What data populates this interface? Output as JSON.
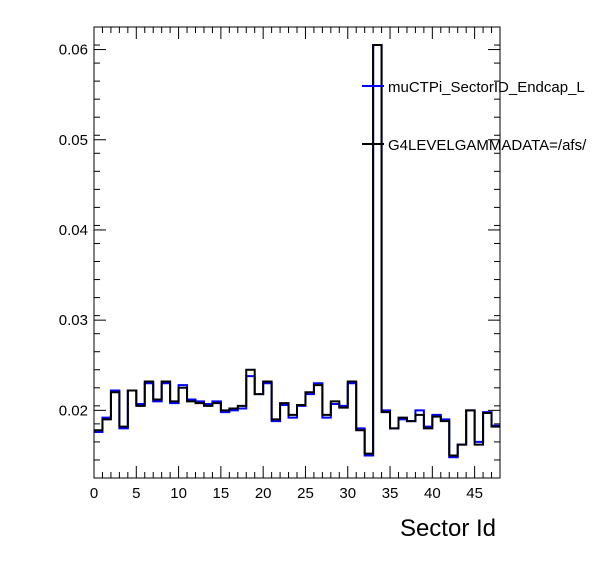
{
  "chart_data": {
    "type": "line",
    "xlabel": "Sector Id",
    "ylabel": "",
    "xlim": [
      0,
      48
    ],
    "ylim": [
      0.0125,
      0.0625
    ],
    "x_ticks": [
      0,
      5,
      10,
      15,
      20,
      25,
      30,
      35,
      40,
      45
    ],
    "y_ticks": [
      0.02,
      0.03,
      0.04,
      0.05,
      0.06
    ],
    "y_tick_labels": [
      "0.02",
      "0.03",
      "0.04",
      "0.05",
      "0.06"
    ],
    "grid": false,
    "legend": "top-right",
    "bin_edges": [
      0,
      1,
      2,
      3,
      4,
      5,
      6,
      7,
      8,
      9,
      10,
      11,
      12,
      13,
      14,
      15,
      16,
      17,
      18,
      19,
      20,
      21,
      22,
      23,
      24,
      25,
      26,
      27,
      28,
      29,
      30,
      31,
      32,
      33,
      34,
      35,
      36,
      37,
      38,
      39,
      40,
      41,
      42,
      43,
      44,
      45,
      46,
      47,
      48
    ],
    "series": [
      {
        "name": "muCTPi_SectorID_Endcap_L",
        "color": "#0000ff",
        "values": [
          0.0176,
          0.0192,
          0.0222,
          0.018,
          0.0222,
          0.0207,
          0.023,
          0.021,
          0.023,
          0.0208,
          0.0228,
          0.0212,
          0.021,
          0.0207,
          0.021,
          0.0198,
          0.02,
          0.0202,
          0.0238,
          0.0218,
          0.023,
          0.0188,
          0.0206,
          0.0192,
          0.0205,
          0.0218,
          0.023,
          0.0192,
          0.0207,
          0.0205,
          0.023,
          0.018,
          0.015,
          0.0605,
          0.02,
          0.018,
          0.019,
          0.0188,
          0.02,
          0.0182,
          0.0195,
          0.019,
          0.0148,
          0.0162,
          0.02,
          0.0165,
          0.0198,
          0.0183
        ]
      },
      {
        "name": "G4LEVELGAMMADATA=/afs/",
        "color": "#000000",
        "values": [
          0.0178,
          0.019,
          0.022,
          0.0182,
          0.0222,
          0.0205,
          0.0232,
          0.0212,
          0.0232,
          0.021,
          0.0225,
          0.021,
          0.0208,
          0.0205,
          0.0208,
          0.02,
          0.0202,
          0.0205,
          0.0245,
          0.0218,
          0.0232,
          0.019,
          0.0208,
          0.0195,
          0.0206,
          0.022,
          0.0228,
          0.0195,
          0.021,
          0.0203,
          0.0232,
          0.0178,
          0.0152,
          0.0605,
          0.0198,
          0.018,
          0.0192,
          0.0188,
          0.0195,
          0.018,
          0.0193,
          0.0188,
          0.015,
          0.0162,
          0.02,
          0.0162,
          0.0197,
          0.0182
        ]
      }
    ]
  }
}
